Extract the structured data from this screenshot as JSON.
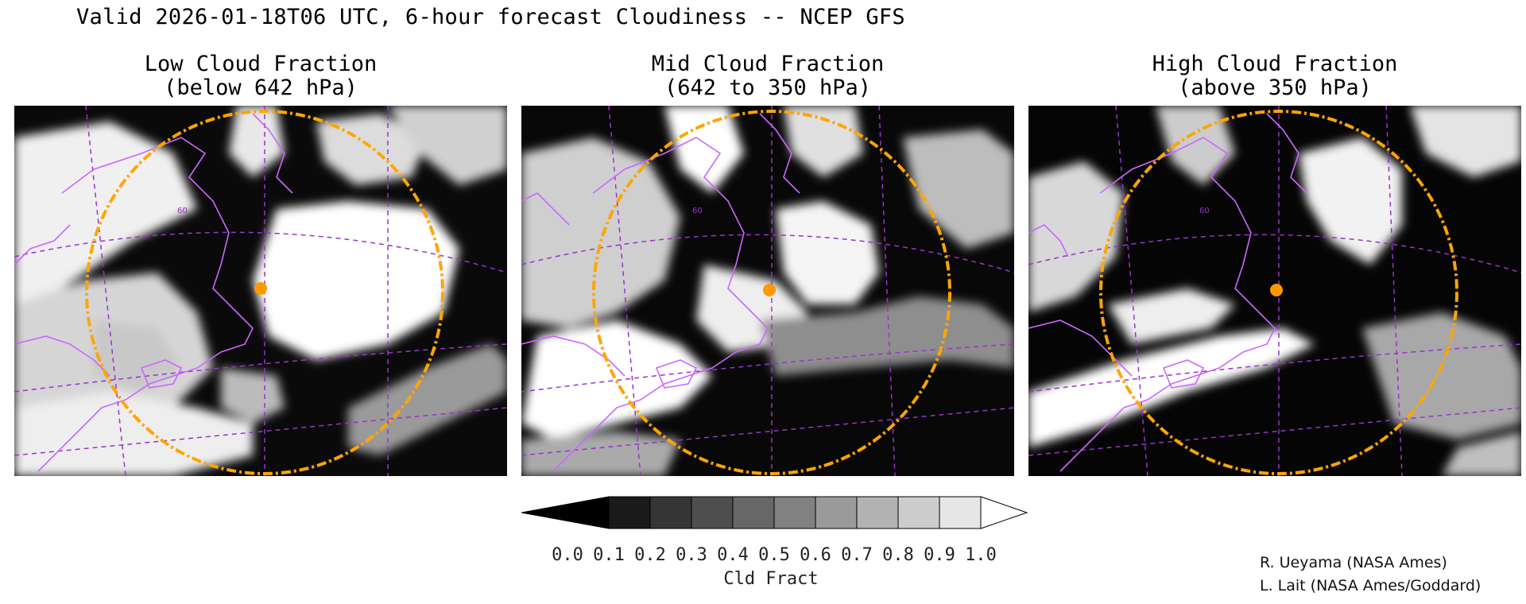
{
  "title": "Valid 2026-01-18T06 UTC, 6-hour forecast Cloudiness -- NCEP GFS",
  "panels": [
    {
      "title_line1": "Low Cloud Fraction",
      "title_line2": "(below 642 hPa)",
      "grid_label": "60"
    },
    {
      "title_line1": "Mid Cloud Fraction",
      "title_line2": "(642 to 350 hPa)",
      "grid_label": "60"
    },
    {
      "title_line1": "High Cloud Fraction",
      "title_line2": "(above 350 hPa)",
      "grid_label": "60"
    }
  ],
  "colorbar": {
    "ticks": [
      "0.0",
      "0.1",
      "0.2",
      "0.3",
      "0.4",
      "0.5",
      "0.6",
      "0.7",
      "0.8",
      "0.9",
      "1.0"
    ],
    "label": "Cld Fract",
    "colors": [
      "#000000",
      "#1a1a1a",
      "#353535",
      "#4e4e4e",
      "#676767",
      "#818181",
      "#9a9a9a",
      "#b3b3b3",
      "#cdcdcd",
      "#e6e6e6",
      "#ffffff"
    ]
  },
  "credits": [
    "R. Ueyama (NASA Ames)",
    "L. Lait (NASA Ames/Goddard)"
  ],
  "colors": {
    "coast": "#cc66ff",
    "grid": "#9933cc",
    "range_ring": "#ffa500",
    "marker": "#ff9900"
  }
}
